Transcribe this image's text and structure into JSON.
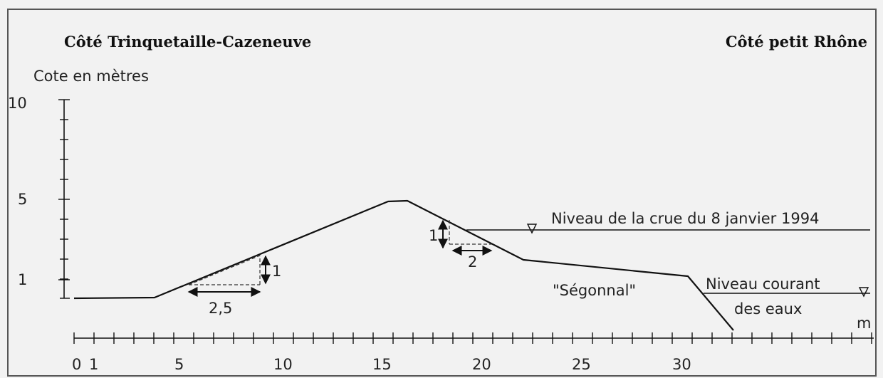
{
  "headers": {
    "left": "Côté Trinquetaille-Cazeneuve",
    "right": "Côté petit Rhône"
  },
  "y_axis": {
    "title": "Cote en mètres",
    "ticks": [
      "10",
      "5",
      "1"
    ]
  },
  "x_axis": {
    "unit": "m",
    "ticks": [
      "0",
      "1",
      "5",
      "10",
      "15",
      "20",
      "25",
      "30"
    ]
  },
  "annotations": {
    "flood_level": "Niveau de la crue du 8 janvier 1994",
    "water_level_line1": "Niveau courant",
    "water_level_line2": "des eaux",
    "segonnal": "\"Ségonnal\"",
    "left_slope_h": "2,5",
    "left_slope_v": "1",
    "right_slope_h": "2",
    "right_slope_v": "1"
  },
  "colors": {
    "background": "#f2f2f2",
    "ink": "#111111",
    "frame": "#555555"
  }
}
